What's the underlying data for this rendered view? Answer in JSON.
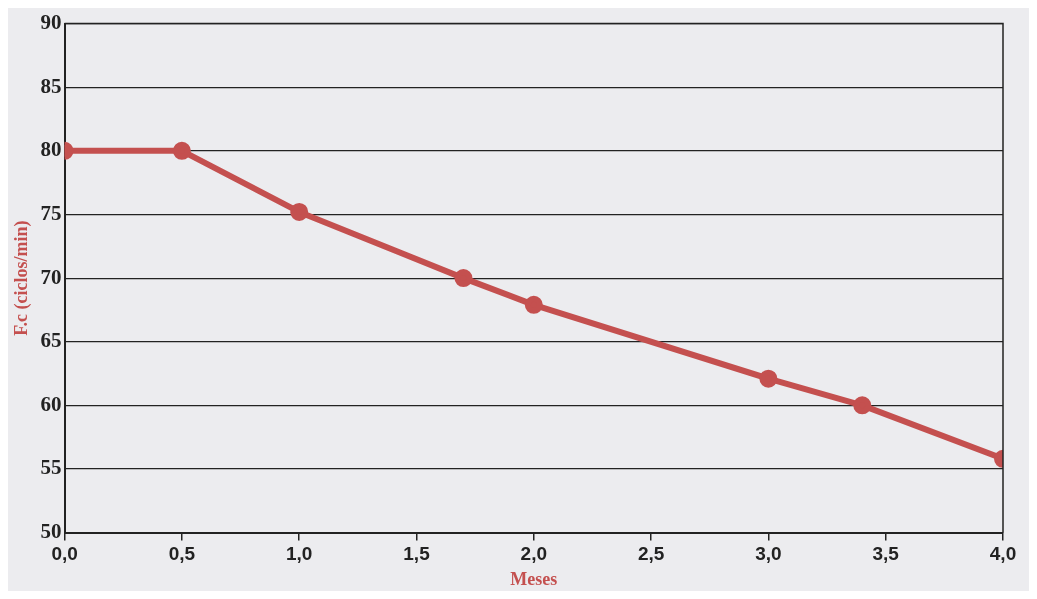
{
  "chart_data": {
    "type": "line",
    "xlabel": "Meses",
    "ylabel": "F.c (ciclos/min)",
    "x": [
      0,
      0.5,
      1.0,
      1.7,
      2.0,
      3.0,
      3.4,
      4.0
    ],
    "series": [
      {
        "color": "#c4504f",
        "values": [
          80,
          80,
          75.2,
          70,
          67.9,
          62.1,
          60,
          55.8
        ]
      }
    ],
    "xlim": [
      0,
      4
    ],
    "xticks": [
      {
        "value": 0,
        "label": "0,0"
      },
      {
        "value": 0.5,
        "label": "0,5"
      },
      {
        "value": 1,
        "label": "1,0"
      },
      {
        "value": 1.5,
        "label": "1,5"
      },
      {
        "value": 2,
        "label": "2,0"
      },
      {
        "value": 2.5,
        "label": "2,5"
      },
      {
        "value": 3,
        "label": "3,0"
      },
      {
        "value": 3.5,
        "label": "3,5"
      },
      {
        "value": 4,
        "label": "4,0"
      }
    ],
    "ylim": [
      50,
      90
    ],
    "yticks": [
      50,
      55,
      60,
      65,
      70,
      75,
      80,
      85,
      90
    ],
    "grid": "y",
    "legend": false,
    "marker": "circle",
    "line_style": "solid"
  }
}
